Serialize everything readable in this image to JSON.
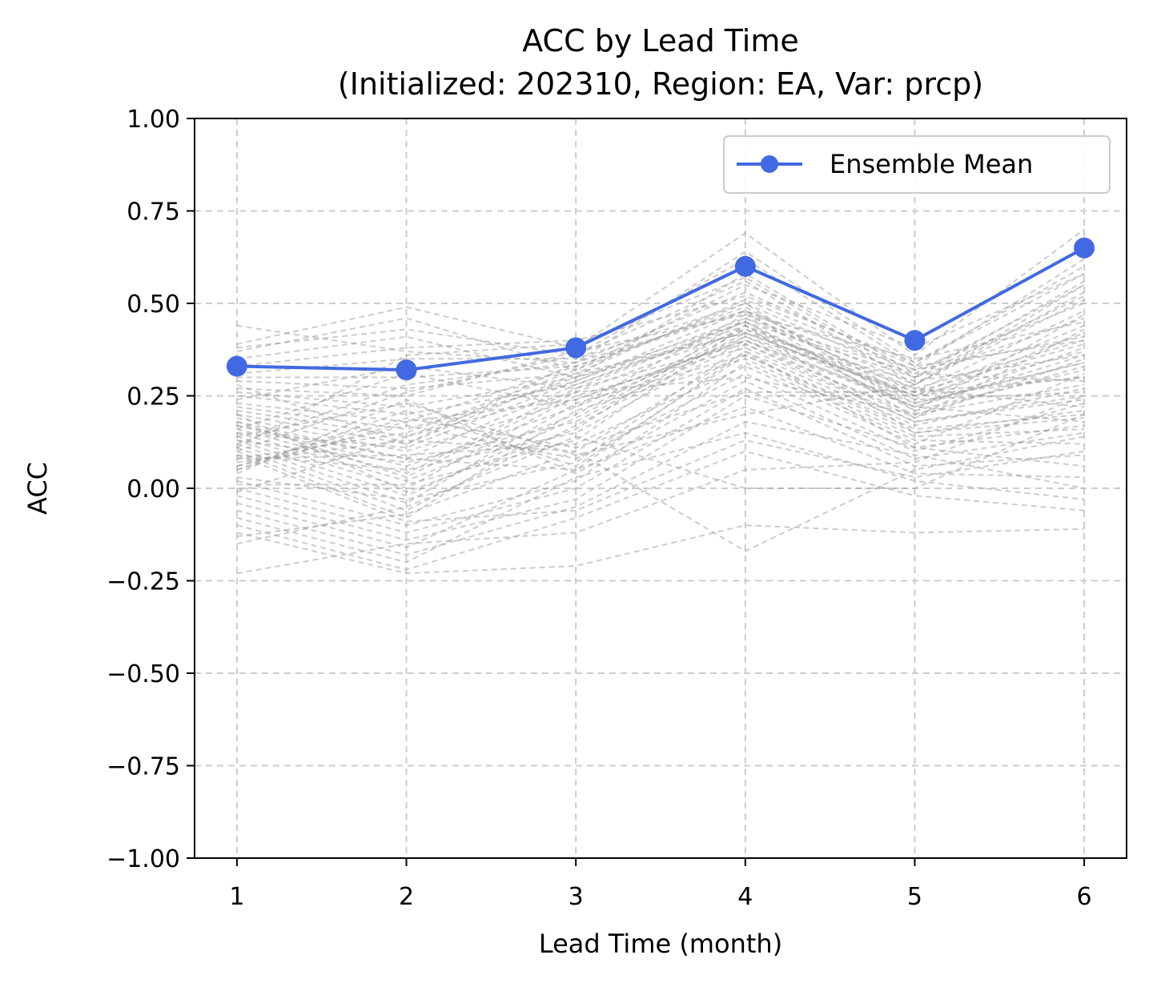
{
  "chart_data": {
    "type": "line",
    "title": "ACC by Lead Time",
    "subtitle": "(Initialized: 202310, Region: EA, Var: prcp)",
    "xlabel": "Lead Time (month)",
    "ylabel": "ACC",
    "xlim": [
      0.75,
      6.25
    ],
    "ylim": [
      -1.0,
      1.0
    ],
    "x": [
      1,
      2,
      3,
      4,
      5,
      6
    ],
    "x_ticks": [
      1,
      2,
      3,
      4,
      5,
      6
    ],
    "x_tick_labels": [
      "1",
      "2",
      "3",
      "4",
      "5",
      "6"
    ],
    "y_ticks": [
      -1.0,
      -0.75,
      -0.5,
      -0.25,
      0.0,
      0.25,
      0.5,
      0.75,
      1.0
    ],
    "y_tick_labels": [
      "−1.00",
      "−0.75",
      "−0.50",
      "−0.25",
      "0.00",
      "0.25",
      "0.50",
      "0.75",
      "1.00"
    ],
    "grid": true,
    "legend": {
      "placement": "top-right",
      "entries": [
        "Ensemble Mean"
      ]
    },
    "series": [
      {
        "name": "Ensemble Mean",
        "values": [
          0.33,
          0.32,
          0.38,
          0.6,
          0.4,
          0.65
        ],
        "color": "#4169e1",
        "style": "solid-marker"
      }
    ],
    "member_series_color": "#999999",
    "member_series": [
      [
        0.44,
        0.37,
        0.34,
        0.64,
        0.34,
        0.58
      ],
      [
        0.39,
        0.49,
        0.38,
        0.69,
        0.36,
        0.7
      ],
      [
        0.38,
        0.43,
        0.36,
        0.62,
        0.33,
        0.62
      ],
      [
        0.37,
        0.46,
        0.32,
        0.55,
        0.38,
        0.58
      ],
      [
        0.35,
        0.41,
        0.3,
        0.58,
        0.31,
        0.55
      ],
      [
        0.33,
        0.38,
        0.4,
        0.52,
        0.34,
        0.6
      ],
      [
        0.31,
        0.35,
        0.35,
        0.5,
        0.3,
        0.52
      ],
      [
        0.3,
        0.3,
        0.33,
        0.48,
        0.28,
        0.55
      ],
      [
        0.29,
        0.27,
        0.31,
        0.51,
        0.32,
        0.5
      ],
      [
        0.27,
        0.25,
        0.37,
        0.47,
        0.26,
        0.48
      ],
      [
        0.26,
        0.22,
        0.3,
        0.45,
        0.3,
        0.46
      ],
      [
        0.25,
        0.2,
        0.28,
        0.44,
        0.25,
        0.44
      ],
      [
        0.23,
        0.18,
        0.33,
        0.49,
        0.24,
        0.42
      ],
      [
        0.22,
        0.16,
        0.29,
        0.46,
        0.27,
        0.4
      ],
      [
        0.21,
        0.14,
        0.26,
        0.43,
        0.22,
        0.38
      ],
      [
        0.2,
        0.12,
        0.31,
        0.42,
        0.29,
        0.36
      ],
      [
        0.19,
        0.1,
        0.24,
        0.4,
        0.23,
        0.34
      ],
      [
        0.18,
        0.08,
        0.28,
        0.45,
        0.21,
        0.32
      ],
      [
        0.17,
        0.06,
        0.22,
        0.41,
        0.26,
        0.3
      ],
      [
        0.16,
        0.04,
        0.27,
        0.39,
        0.2,
        0.28
      ],
      [
        0.15,
        0.02,
        0.2,
        0.44,
        0.24,
        0.26
      ],
      [
        0.14,
        0.0,
        0.25,
        0.38,
        0.18,
        0.24
      ],
      [
        0.13,
        -0.02,
        0.19,
        0.43,
        0.27,
        0.22
      ],
      [
        0.12,
        -0.04,
        0.23,
        0.36,
        0.16,
        0.2
      ],
      [
        0.11,
        -0.06,
        0.17,
        0.41,
        0.22,
        0.18
      ],
      [
        0.1,
        -0.08,
        0.21,
        0.35,
        0.14,
        0.16
      ],
      [
        0.09,
        0.05,
        0.15,
        0.4,
        0.19,
        0.35
      ],
      [
        0.08,
        0.09,
        0.12,
        0.33,
        0.12,
        0.31
      ],
      [
        0.07,
        0.13,
        0.1,
        0.37,
        0.17,
        0.27
      ],
      [
        0.06,
        0.17,
        0.08,
        0.31,
        0.1,
        0.23
      ],
      [
        0.05,
        0.21,
        0.06,
        0.36,
        0.15,
        0.19
      ],
      [
        0.04,
        0.24,
        0.04,
        0.29,
        0.08,
        0.15
      ],
      [
        0.02,
        -0.1,
        0.02,
        0.34,
        0.13,
        0.12
      ],
      [
        0.0,
        -0.12,
        0.0,
        0.27,
        0.06,
        0.09
      ],
      [
        -0.02,
        -0.14,
        -0.03,
        0.25,
        0.11,
        0.06
      ],
      [
        -0.04,
        -0.16,
        0.05,
        0.22,
        0.04,
        0.03
      ],
      [
        -0.06,
        -0.18,
        -0.05,
        0.18,
        0.09,
        0.0
      ],
      [
        -0.08,
        -0.2,
        0.03,
        0.15,
        0.02,
        -0.03
      ],
      [
        -0.1,
        -0.22,
        -0.08,
        0.1,
        -0.02,
        -0.06
      ],
      [
        -0.12,
        -0.23,
        -0.21,
        -0.1,
        -0.12,
        -0.11
      ],
      [
        -0.13,
        -0.07,
        0.1,
        -0.17,
        0.05,
        0.14
      ],
      [
        -0.15,
        -0.05,
        0.14,
        0.0,
        0.0,
        0.2
      ],
      [
        -0.23,
        -0.15,
        -0.12,
        0.05,
        0.07,
        0.25
      ],
      [
        0.16,
        0.31,
        0.22,
        0.47,
        0.35,
        0.45
      ],
      [
        0.12,
        0.28,
        0.34,
        0.53,
        0.33,
        0.4
      ],
      [
        0.1,
        0.26,
        0.36,
        0.56,
        0.28,
        0.51
      ],
      [
        0.15,
        0.11,
        0.29,
        0.48,
        0.19,
        0.43
      ],
      [
        0.13,
        0.07,
        0.18,
        0.42,
        0.25,
        0.37
      ],
      [
        0.18,
        0.03,
        0.26,
        0.3,
        0.2,
        0.33
      ],
      [
        0.2,
        -0.01,
        0.16,
        0.46,
        0.31,
        0.29
      ],
      [
        0.08,
        0.15,
        0.32,
        0.5,
        0.21,
        0.47
      ],
      [
        0.06,
        0.19,
        0.11,
        0.26,
        0.26,
        0.39
      ],
      [
        0.03,
        -0.03,
        0.07,
        0.39,
        0.18,
        0.25
      ],
      [
        0.01,
        0.01,
        0.13,
        0.44,
        0.15,
        0.21
      ],
      [
        0.14,
        0.23,
        0.09,
        0.2,
        0.28,
        0.53
      ],
      [
        0.11,
        0.36,
        0.39,
        0.57,
        0.3,
        0.56
      ],
      [
        0.24,
        0.33,
        0.27,
        0.45,
        0.23,
        0.34
      ],
      [
        0.28,
        0.12,
        0.34,
        0.48,
        0.32,
        0.41
      ],
      [
        0.17,
        0.08,
        0.05,
        0.37,
        0.11,
        0.17
      ],
      [
        0.09,
        -0.09,
        -0.06,
        0.13,
        0.03,
        0.1
      ],
      [
        -0.01,
        0.14,
        0.3,
        0.42,
        0.25,
        0.3
      ],
      [
        0.05,
        0.18,
        0.24,
        0.4,
        0.22,
        0.36
      ]
    ]
  }
}
